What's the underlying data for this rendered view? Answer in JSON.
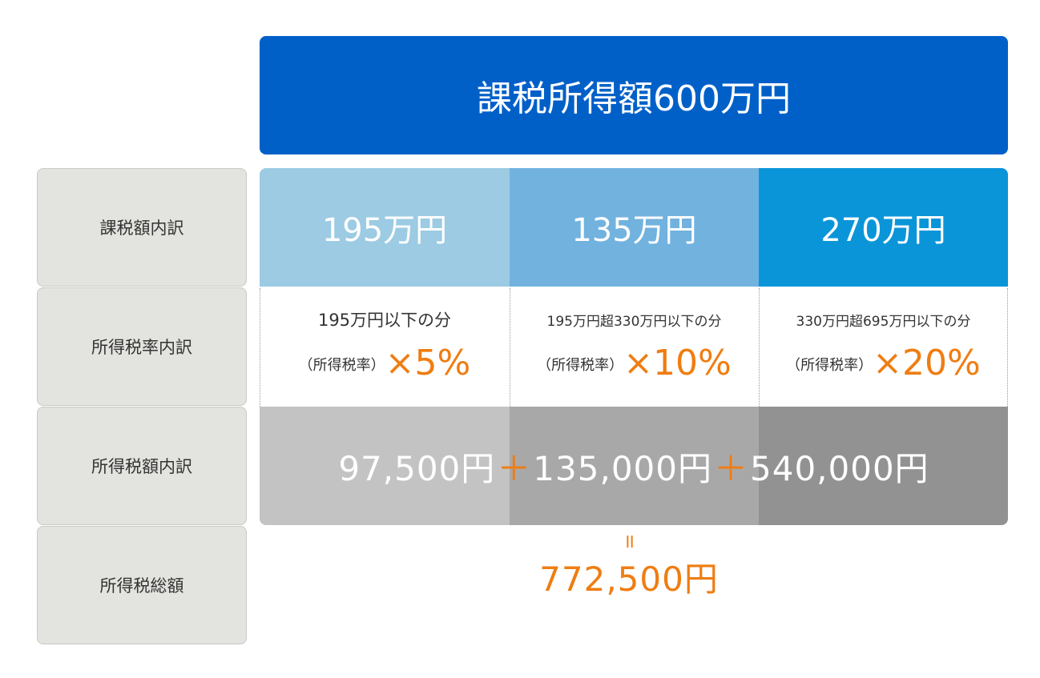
{
  "header": "課税所得額600万円",
  "rows": {
    "breakdown": "課税額内訳",
    "rate": "所得税率内訳",
    "amount": "所得税額内訳",
    "total": "所得税総額"
  },
  "brackets": [
    {
      "amount": "195万円",
      "range": "195万円以下の分",
      "paren": "（所得税率）",
      "rate": "×5%",
      "tax": "97,500円",
      "color": "#9ccbe3",
      "tax_color": "#c3c3c3"
    },
    {
      "amount": "135万円",
      "range": "195万円超330万円以下の分",
      "paren": "（所得税率）",
      "rate": "×10%",
      "tax": "135,000円",
      "color": "#72b2df",
      "tax_color": "#a8a8a8"
    },
    {
      "amount": "270万円",
      "range": "330万円超695万円以下の分",
      "paren": "（所得税率）",
      "rate": "×20%",
      "tax": "540,000円",
      "color": "#0a95d9",
      "tax_color": "#929292"
    }
  ],
  "plus": "＋",
  "equals": "॥",
  "total_value": "772,500円",
  "colors": {
    "header": "#0060c8",
    "accent": "#ef7d12",
    "label_bg": "#e3e3df"
  }
}
